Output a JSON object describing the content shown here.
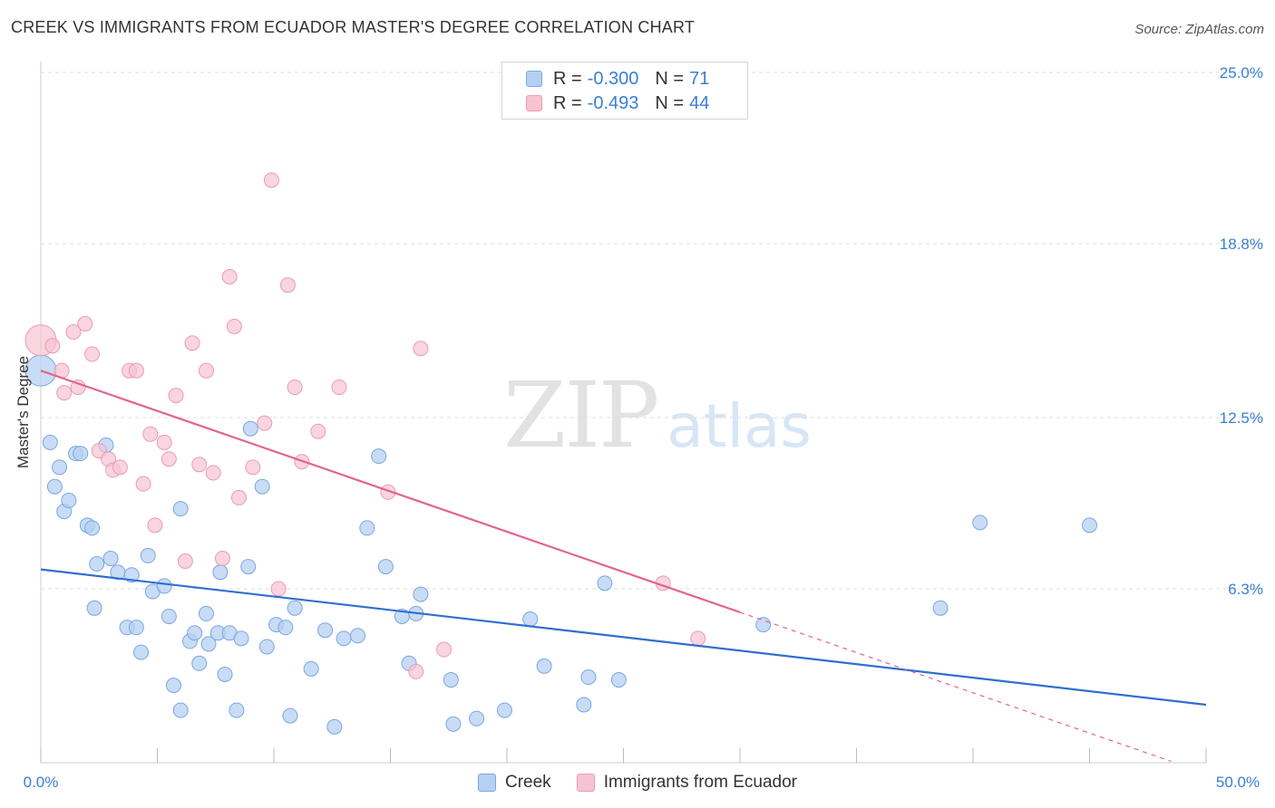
{
  "header": {
    "title": "CREEK VS IMMIGRANTS FROM ECUADOR MASTER'S DEGREE CORRELATION CHART",
    "source": "Source: ZipAtlas.com"
  },
  "watermark": {
    "zip": "ZIP",
    "atlas": "atlas"
  },
  "legend": {
    "rows": [
      {
        "r_label": "R =",
        "r_value": "-0.300",
        "n_label": "N =",
        "n_value": "71"
      },
      {
        "r_label": "R =",
        "r_value": "-0.493",
        "n_label": "N =",
        "n_value": "44"
      }
    ]
  },
  "bottom_legend": {
    "creek": "Creek",
    "ecuador": "Immigrants from Ecuador"
  },
  "chart_data": {
    "type": "scatter",
    "ylabel": "Master's Degree",
    "xlim": [
      0,
      50
    ],
    "ylim": [
      0,
      25
    ],
    "x_tick_labels": {
      "min": "0.0%",
      "max": "50.0%"
    },
    "y_ticks": [
      {
        "value": 6.3,
        "label": "6.3%"
      },
      {
        "value": 12.5,
        "label": "12.5%"
      },
      {
        "value": 18.8,
        "label": "18.8%"
      },
      {
        "value": 25.0,
        "label": "25.0%"
      }
    ],
    "colors": {
      "creek_fill": "#b6d0f2",
      "creek_edge": "#7aa7e2",
      "creek_line": "#2e6fd0",
      "ecuador_fill": "#f7c3d3",
      "ecuador_edge": "#ec9ab4",
      "ecuador_line": "#e2648f",
      "tick_text": "#3a7fd5",
      "grid": "#dddddd"
    },
    "series": [
      {
        "name": "Creek",
        "trend": {
          "x0": 0,
          "y0": 7.0,
          "x1": 50,
          "y1": 2.1
        },
        "points": [
          [
            0.0,
            14.2
          ],
          [
            0.4,
            11.6
          ],
          [
            0.6,
            10.0
          ],
          [
            0.8,
            10.7
          ],
          [
            1.0,
            9.1
          ],
          [
            1.2,
            9.5
          ],
          [
            1.5,
            11.2
          ],
          [
            1.7,
            11.2
          ],
          [
            2.0,
            8.6
          ],
          [
            2.2,
            8.5
          ],
          [
            2.3,
            5.6
          ],
          [
            2.4,
            7.2
          ],
          [
            2.8,
            11.5
          ],
          [
            3.0,
            7.4
          ],
          [
            3.3,
            6.9
          ],
          [
            3.7,
            4.9
          ],
          [
            3.9,
            6.8
          ],
          [
            4.1,
            4.9
          ],
          [
            4.3,
            4.0
          ],
          [
            4.6,
            7.5
          ],
          [
            4.8,
            6.2
          ],
          [
            5.3,
            6.4
          ],
          [
            5.5,
            5.3
          ],
          [
            5.7,
            2.8
          ],
          [
            6.0,
            1.9
          ],
          [
            6.0,
            9.2
          ],
          [
            6.4,
            4.4
          ],
          [
            6.6,
            4.7
          ],
          [
            6.8,
            3.6
          ],
          [
            7.1,
            5.4
          ],
          [
            7.2,
            4.3
          ],
          [
            7.6,
            4.7
          ],
          [
            7.7,
            6.9
          ],
          [
            7.9,
            3.2
          ],
          [
            8.1,
            4.7
          ],
          [
            8.4,
            1.9
          ],
          [
            8.6,
            4.5
          ],
          [
            8.9,
            7.1
          ],
          [
            9.0,
            12.1
          ],
          [
            9.5,
            10.0
          ],
          [
            9.7,
            4.2
          ],
          [
            10.1,
            5.0
          ],
          [
            10.5,
            4.9
          ],
          [
            10.7,
            1.7
          ],
          [
            10.9,
            5.6
          ],
          [
            11.6,
            3.4
          ],
          [
            12.2,
            4.8
          ],
          [
            12.6,
            1.3
          ],
          [
            13.0,
            4.5
          ],
          [
            13.6,
            4.6
          ],
          [
            14.0,
            8.5
          ],
          [
            14.5,
            11.1
          ],
          [
            14.8,
            7.1
          ],
          [
            15.5,
            5.3
          ],
          [
            15.8,
            3.6
          ],
          [
            16.1,
            5.4
          ],
          [
            16.3,
            6.1
          ],
          [
            17.6,
            3.0
          ],
          [
            17.7,
            1.4
          ],
          [
            18.7,
            1.6
          ],
          [
            19.9,
            1.9
          ],
          [
            21.0,
            5.2
          ],
          [
            21.6,
            3.5
          ],
          [
            23.3,
            2.1
          ],
          [
            23.5,
            3.1
          ],
          [
            24.2,
            6.5
          ],
          [
            24.8,
            3.0
          ],
          [
            31.0,
            5.0
          ],
          [
            38.6,
            5.6
          ],
          [
            40.3,
            8.7
          ],
          [
            45.0,
            8.6
          ]
        ]
      },
      {
        "name": "Immigrants from Ecuador",
        "trend": {
          "x0": 0,
          "y0": 14.2,
          "x1": 30,
          "y1": 5.45,
          "dash_to_x": 48.5,
          "dash_to_y": 0.05
        },
        "points": [
          [
            0.0,
            15.3
          ],
          [
            0.5,
            15.1
          ],
          [
            0.9,
            14.2
          ],
          [
            1.0,
            13.4
          ],
          [
            1.4,
            15.6
          ],
          [
            1.6,
            13.6
          ],
          [
            1.9,
            15.9
          ],
          [
            2.2,
            14.8
          ],
          [
            2.5,
            11.3
          ],
          [
            2.9,
            11.0
          ],
          [
            3.1,
            10.6
          ],
          [
            3.4,
            10.7
          ],
          [
            3.8,
            14.2
          ],
          [
            4.1,
            14.2
          ],
          [
            4.4,
            10.1
          ],
          [
            4.7,
            11.9
          ],
          [
            4.9,
            8.6
          ],
          [
            5.3,
            11.6
          ],
          [
            5.5,
            11.0
          ],
          [
            5.8,
            13.3
          ],
          [
            6.2,
            7.3
          ],
          [
            6.5,
            15.2
          ],
          [
            6.8,
            10.8
          ],
          [
            7.1,
            14.2
          ],
          [
            7.4,
            10.5
          ],
          [
            7.8,
            7.4
          ],
          [
            8.1,
            17.6
          ],
          [
            8.3,
            15.8
          ],
          [
            8.5,
            9.6
          ],
          [
            9.1,
            10.7
          ],
          [
            9.6,
            12.3
          ],
          [
            9.9,
            21.1
          ],
          [
            10.2,
            6.3
          ],
          [
            10.6,
            17.3
          ],
          [
            10.9,
            13.6
          ],
          [
            11.2,
            10.9
          ],
          [
            11.9,
            12.0
          ],
          [
            12.8,
            13.6
          ],
          [
            14.9,
            9.8
          ],
          [
            16.1,
            3.3
          ],
          [
            16.3,
            15.0
          ],
          [
            17.3,
            4.1
          ],
          [
            26.7,
            6.5
          ],
          [
            28.2,
            4.5
          ]
        ]
      }
    ]
  }
}
